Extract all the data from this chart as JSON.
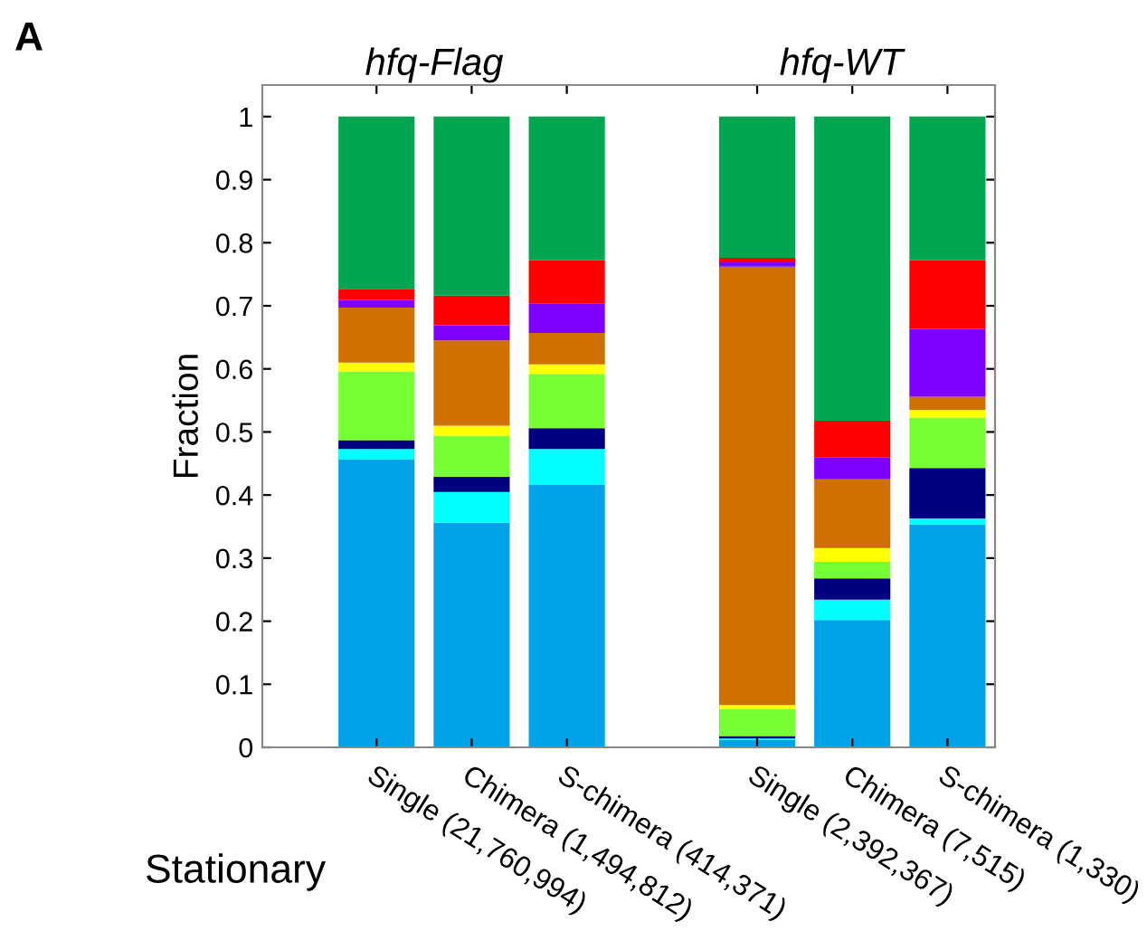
{
  "chart_data": {
    "type": "bar",
    "stacked": true,
    "ylabel": "Fraction",
    "categories": [
      "Single (21,760,994)",
      "Chimera (1,494,812)",
      "S-chimera (414,371)",
      null,
      "Single (2,392,367)",
      "Chimera (7,515)",
      "S-chimera (1,330)"
    ],
    "series": [
      {
        "color": "#00a2e8",
        "values": [
          0.456,
          0.356,
          0.416,
          null,
          0.012,
          0.202,
          0.353
        ]
      },
      {
        "color": "#00ffff",
        "values": [
          0.017,
          0.049,
          0.057,
          null,
          0.002,
          0.032,
          0.01
        ]
      },
      {
        "color": "#000080",
        "values": [
          0.014,
          0.024,
          0.033,
          null,
          0.004,
          0.034,
          0.08
        ]
      },
      {
        "color": "#76ff33",
        "values": [
          0.109,
          0.065,
          0.086,
          null,
          0.043,
          0.026,
          0.08
        ]
      },
      {
        "color": "#ffff00",
        "values": [
          0.014,
          0.016,
          0.015,
          null,
          0.006,
          0.022,
          0.012
        ]
      },
      {
        "color": "#d07000",
        "values": [
          0.087,
          0.135,
          0.05,
          null,
          0.695,
          0.109,
          0.021
        ]
      },
      {
        "color": "#8000ff",
        "values": [
          0.012,
          0.024,
          0.047,
          null,
          0.007,
          0.035,
          0.107
        ]
      },
      {
        "color": "#ff0000",
        "values": [
          0.018,
          0.047,
          0.068,
          null,
          0.007,
          0.058,
          0.109
        ]
      },
      {
        "color": "#00a651",
        "values": [
          0.273,
          0.284,
          0.228,
          null,
          0.224,
          0.482,
          0.228
        ]
      }
    ],
    "ylim": [
      0,
      1.05
    ],
    "yticks": [
      0,
      0.1,
      0.2,
      0.3,
      0.4,
      0.5,
      0.6,
      0.7,
      0.8,
      0.9,
      1
    ],
    "grid": false,
    "legend": false,
    "annotations": [
      "A",
      "hfq-Flag",
      "hfq-WT",
      "Stationary"
    ]
  }
}
